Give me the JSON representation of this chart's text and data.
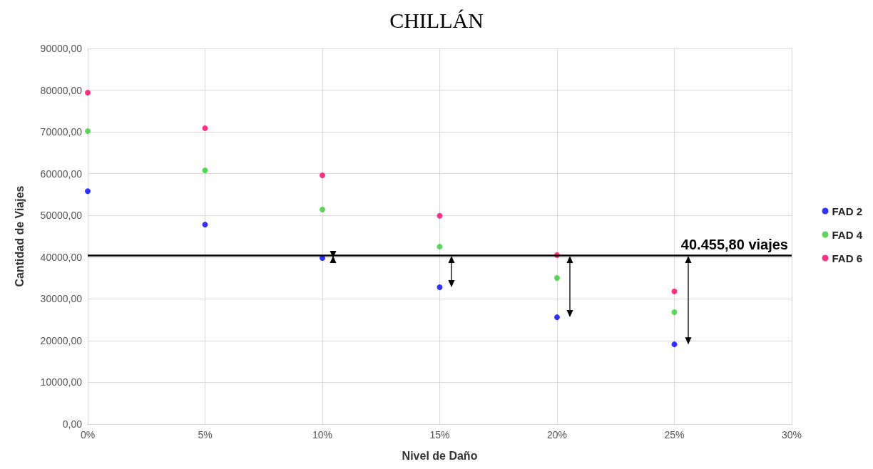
{
  "chart_data": {
    "type": "scatter",
    "title": "CHILLÁN",
    "xlabel": "Nivel de Daño",
    "ylabel": "Cantidad de Viajes",
    "x": [
      0,
      5,
      10,
      15,
      20,
      25
    ],
    "series": [
      {
        "name": "FAD 2",
        "color": "#0000ff",
        "values": [
          55800,
          47800,
          39800,
          32800,
          25600,
          19100
        ]
      },
      {
        "name": "FAD 4",
        "color": "#33cc33",
        "values": [
          70200,
          60800,
          51400,
          42500,
          35000,
          26800
        ]
      },
      {
        "name": "FAD 6",
        "color": "#ff0066",
        "values": [
          79400,
          70900,
          59600,
          49900,
          40500,
          31800
        ]
      }
    ],
    "xlim": [
      0,
      30
    ],
    "xticks": [
      {
        "value": 0,
        "label": "0%"
      },
      {
        "value": 5,
        "label": "5%"
      },
      {
        "value": 10,
        "label": "10%"
      },
      {
        "value": 15,
        "label": "15%"
      },
      {
        "value": 20,
        "label": "20%"
      },
      {
        "value": 25,
        "label": "25%"
      },
      {
        "value": 30,
        "label": "30%"
      }
    ],
    "ylim": [
      0,
      90000
    ],
    "yticks": [
      {
        "value": 0,
        "label": "0,00"
      },
      {
        "value": 10000,
        "label": "10000,00"
      },
      {
        "value": 20000,
        "label": "20000,00"
      },
      {
        "value": 30000,
        "label": "30000,00"
      },
      {
        "value": 40000,
        "label": "40000,00"
      },
      {
        "value": 50000,
        "label": "50000,00"
      },
      {
        "value": 60000,
        "label": "60000,00"
      },
      {
        "value": 70000,
        "label": "70000,00"
      },
      {
        "value": 80000,
        "label": "80000,00"
      },
      {
        "value": 90000,
        "label": "90000,00"
      }
    ],
    "ref_lines": [
      {
        "axis": "y",
        "value": 40455.8,
        "label": "40.455,80 viajes",
        "color": "#000000"
      }
    ],
    "grid": true,
    "legend": "right",
    "marker": "circle"
  }
}
